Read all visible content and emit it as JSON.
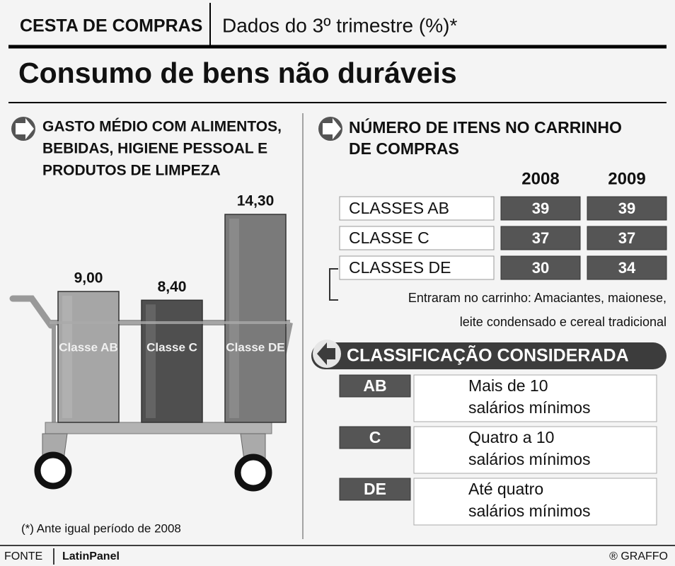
{
  "header": {
    "section": "CESTA DE COMPRAS",
    "subtitle": "Dados do 3º trimestre (%)*",
    "title": "Consumo de bens não duráveis"
  },
  "chart_data": {
    "type": "bar",
    "title": [
      "GASTO MÉDIO COM ALIMENTOS,",
      "BEBIDAS, HIGIENE PESSOAL E",
      "PRODUTOS DE LIMPEZA"
    ],
    "categories": [
      "Classe AB",
      "Classe C",
      "Classe DE"
    ],
    "values": [
      9.0,
      8.4,
      14.3
    ],
    "value_labels": [
      "9,00",
      "8,40",
      "14,30"
    ],
    "colors": [
      "#a6a6a6",
      "#4f4f4f",
      "#7a7a7a"
    ]
  },
  "items_table": {
    "title": [
      "NÚMERO DE ITENS NO CARRINHO",
      "DE COMPRAS"
    ],
    "columns": [
      "2008",
      "2009"
    ],
    "rows": [
      {
        "label": "CLASSES AB",
        "values": [
          39,
          39
        ]
      },
      {
        "label": "CLASSE C",
        "values": [
          37,
          37
        ]
      },
      {
        "label": "CLASSES DE",
        "values": [
          30,
          34
        ]
      }
    ],
    "note": [
      "Entraram no carrinho: Amaciantes, maionese,",
      "leite condensado e cereal tradicional"
    ]
  },
  "classification": {
    "title": "CLASSIFICAÇÃO CONSIDERADA",
    "rows": [
      {
        "class": "AB",
        "description": [
          "Mais de 10",
          "salários mínimos"
        ]
      },
      {
        "class": "C",
        "description": [
          "Quatro a 10",
          "salários mínimos"
        ]
      },
      {
        "class": "DE",
        "description": [
          "Até quatro",
          "salários mínimos"
        ]
      }
    ]
  },
  "footnote": "(*) Ante igual período de 2008",
  "footer": {
    "source_label": "FONTE",
    "source": "LatinPanel",
    "credit": "® GRAFFO"
  }
}
